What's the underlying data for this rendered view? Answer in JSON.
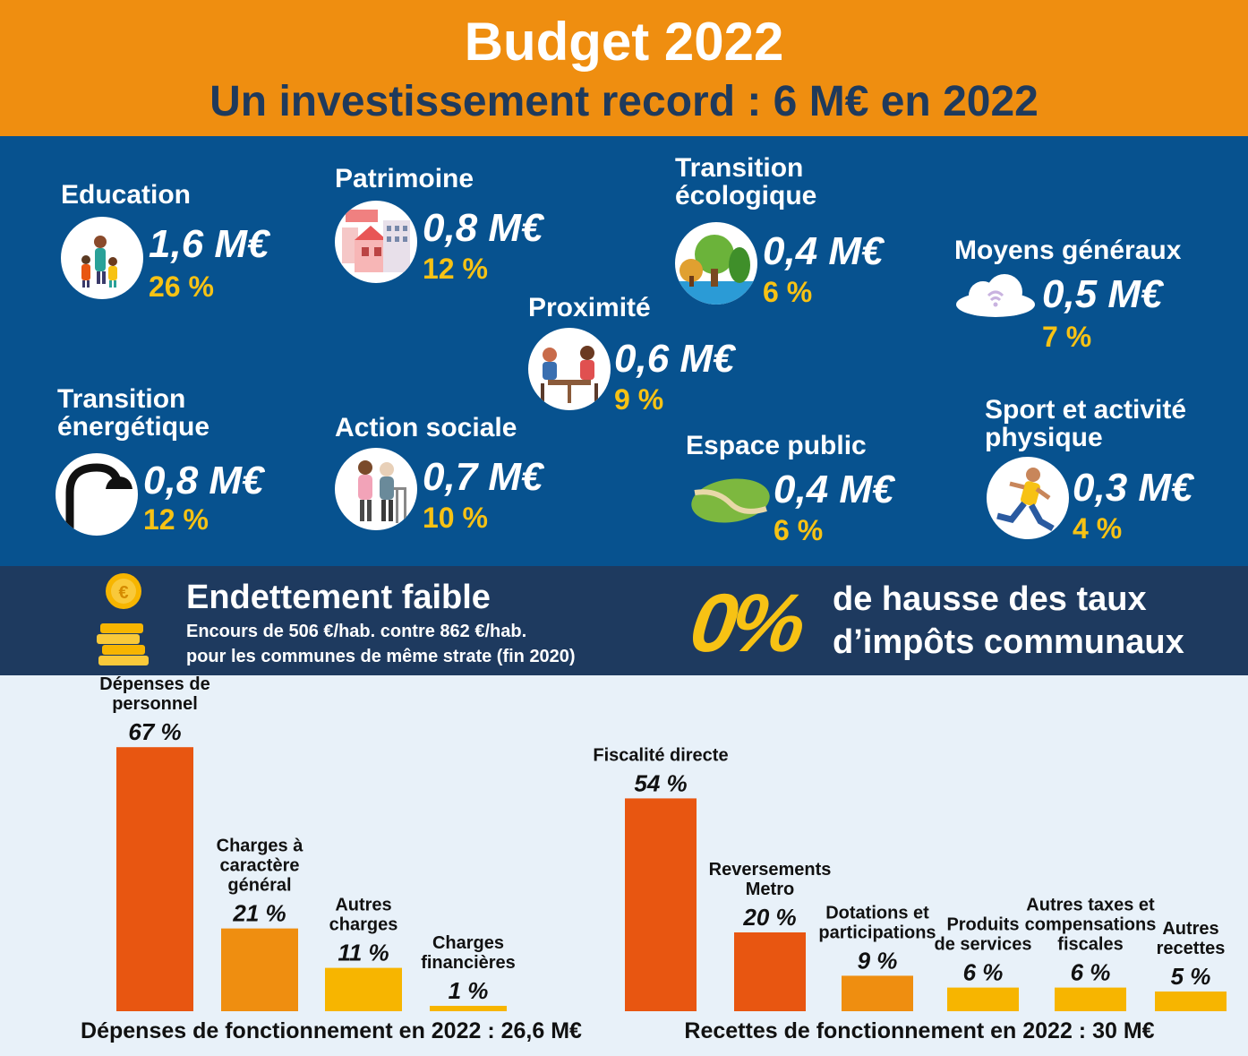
{
  "header": {
    "title": "Budget 2022",
    "subtitle": "Un investissement record : 6 M€  en 2022"
  },
  "investments": [
    {
      "label": "Education",
      "amount": "1,6 M€",
      "pct": "26 %",
      "icon": "family-icon"
    },
    {
      "label": "Patrimoine",
      "amount": "0,8 M€",
      "pct": "12 %",
      "icon": "buildings-icon"
    },
    {
      "label": "Transition écologique",
      "amount": "0,4 M€",
      "pct": "6 %",
      "icon": "trees-icon"
    },
    {
      "label": "Moyens généraux",
      "amount": "0,5 M€",
      "pct": "7 %",
      "icon": "cloud-wifi-icon"
    },
    {
      "label": "Proximité",
      "amount": "0,6 M€",
      "pct": "9 %",
      "icon": "people-table-icon"
    },
    {
      "label": "Transition énergétique",
      "amount": "0,8 M€",
      "pct": "12 %",
      "icon": "street-lamp-icon"
    },
    {
      "label": "Action sociale",
      "amount": "0,7 M€",
      "pct": "10 %",
      "icon": "elderly-people-icon"
    },
    {
      "label": "Espace public",
      "amount": "0,4 M€",
      "pct": "6 %",
      "icon": "green-path-icon"
    },
    {
      "label": "Sport et activité physique",
      "amount": "0,3 M€",
      "pct": "4 %",
      "icon": "runner-icon"
    }
  ],
  "debt": {
    "title": "Endettement faible",
    "line1": "Encours de 506 €/hab. contre 862 €/hab.",
    "line2": "pour les communes de même strate (fin 2020)",
    "icon": "coins-icon"
  },
  "tax": {
    "value": "0%",
    "line1": "de hausse des taux",
    "line2": "d’impôts communaux"
  },
  "colors": {
    "header": "#ef8e10",
    "band": "#07528f",
    "debt_band": "#1e3a5f",
    "accent": "#f7c214",
    "bar_red": "#e85611",
    "bar_orange": "#ef8e10",
    "bar_yellow": "#f7b500"
  },
  "chart_data": [
    {
      "type": "bar",
      "title": "Dépenses de fonctionnement en 2022 : 26,6 M€",
      "categories": [
        "Dépenses de personnel",
        "Charges à caractère général",
        "Autres charges",
        "Charges financières"
      ],
      "values": [
        67,
        21,
        11,
        1
      ],
      "labels": [
        "67 %",
        "21 %",
        "11 %",
        "1 %"
      ],
      "ylim": [
        0,
        100
      ]
    },
    {
      "type": "bar",
      "title": "Recettes de fonctionnement en 2022 : 30 M€",
      "categories": [
        "Fiscalité directe",
        "Reversements Metro",
        "Dotations et participations",
        "Produits de services",
        "Autres taxes et compensations fiscales",
        "Autres recettes"
      ],
      "values": [
        54,
        20,
        9,
        6,
        6,
        5
      ],
      "labels": [
        "54 %",
        "20 %",
        "9 %",
        "6 %",
        "6 %",
        "5 %"
      ],
      "ylim": [
        0,
        100
      ]
    }
  ]
}
